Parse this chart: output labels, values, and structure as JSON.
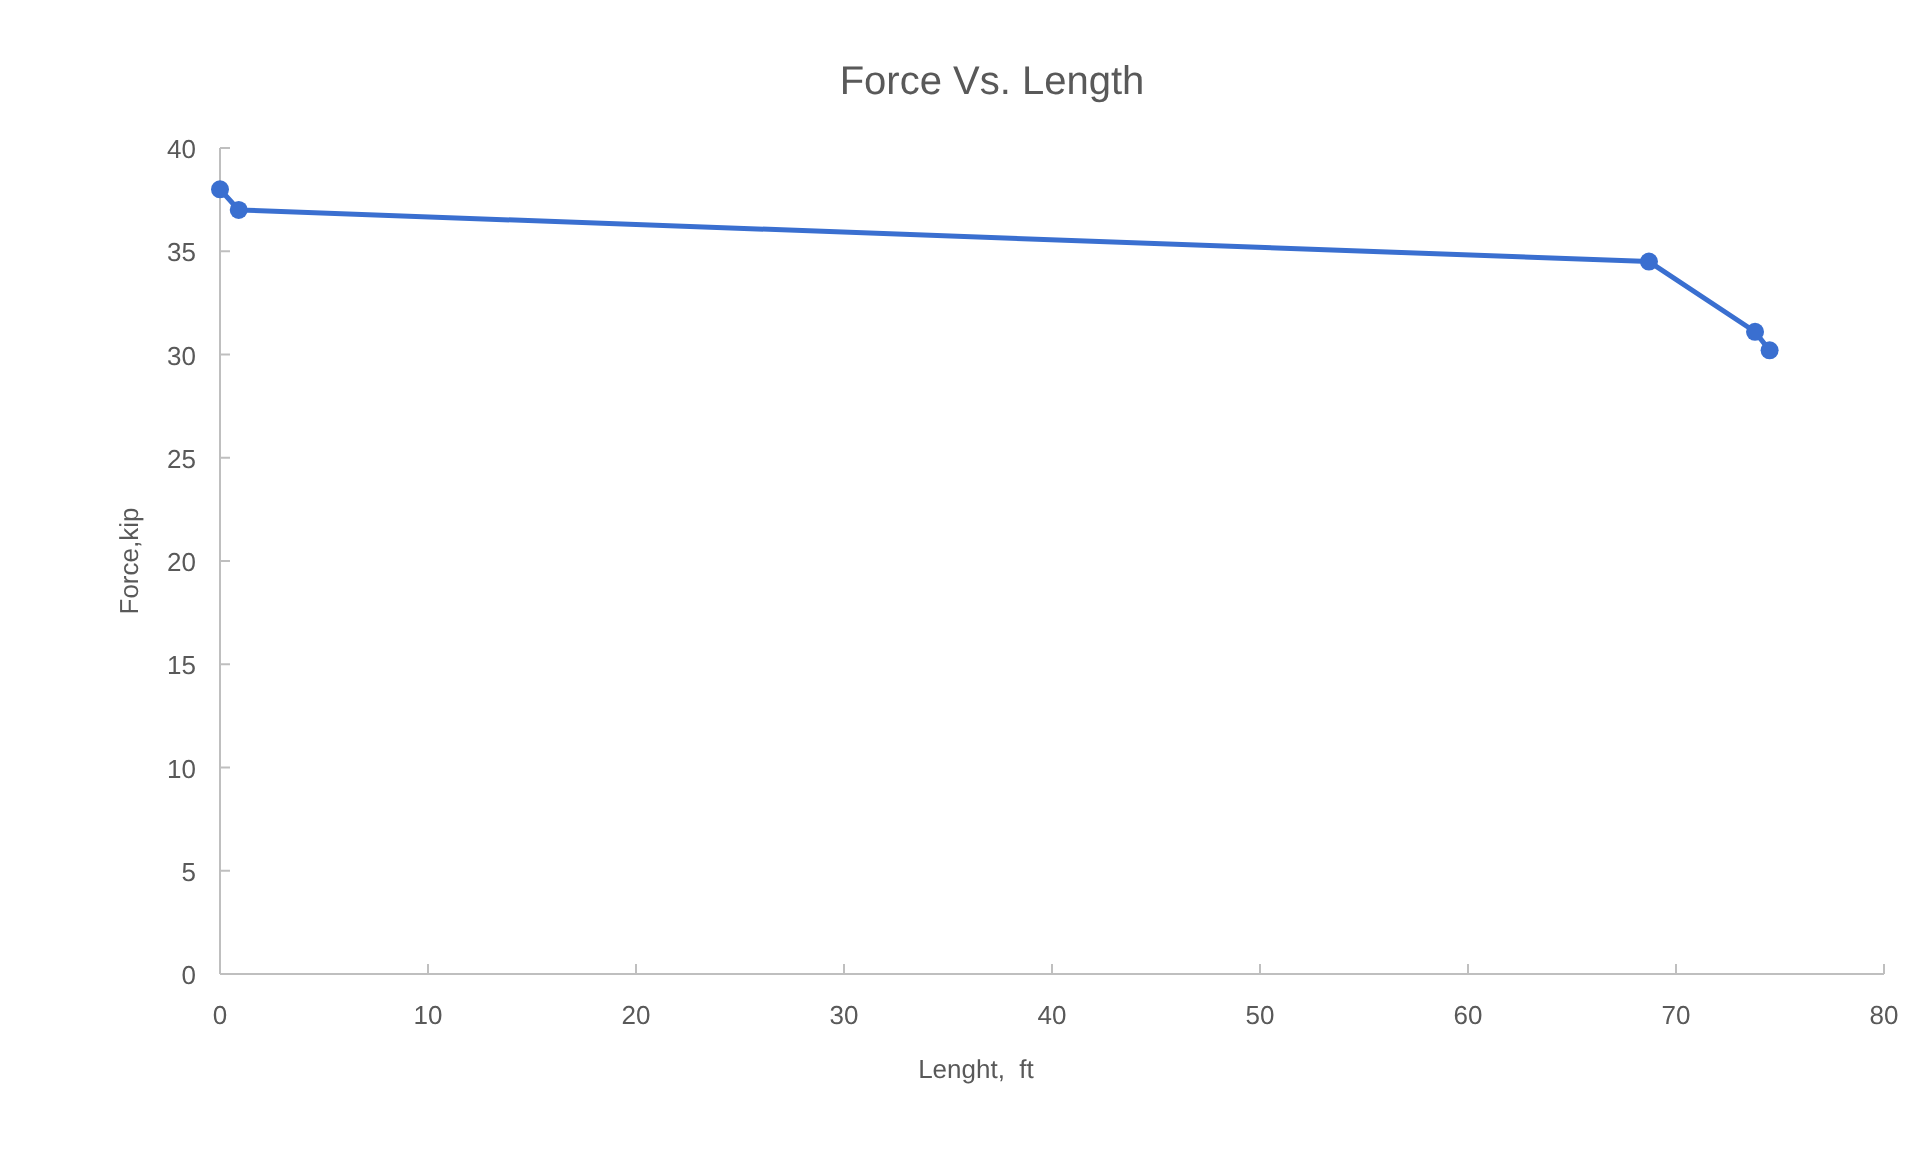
{
  "chart_data": {
    "type": "line",
    "title": "Force Vs. Length",
    "xlabel": "Lenght,  ft",
    "ylabel": "Force,kip",
    "x": [
      0,
      0.9,
      68.7,
      73.8,
      74.5
    ],
    "series": [
      {
        "color": "#3a6fd0",
        "values": [
          38,
          37,
          34.5,
          31.1,
          30.2
        ]
      }
    ],
    "xlim": [
      0,
      80
    ],
    "xticks": [
      0,
      10,
      20,
      30,
      40,
      50,
      60,
      70,
      80
    ],
    "ylim": [
      0,
      40
    ],
    "yticks": [
      0,
      5,
      10,
      15,
      20,
      25,
      30,
      35,
      40
    ],
    "grid": false,
    "marker": "circle",
    "line_style": "solid"
  }
}
